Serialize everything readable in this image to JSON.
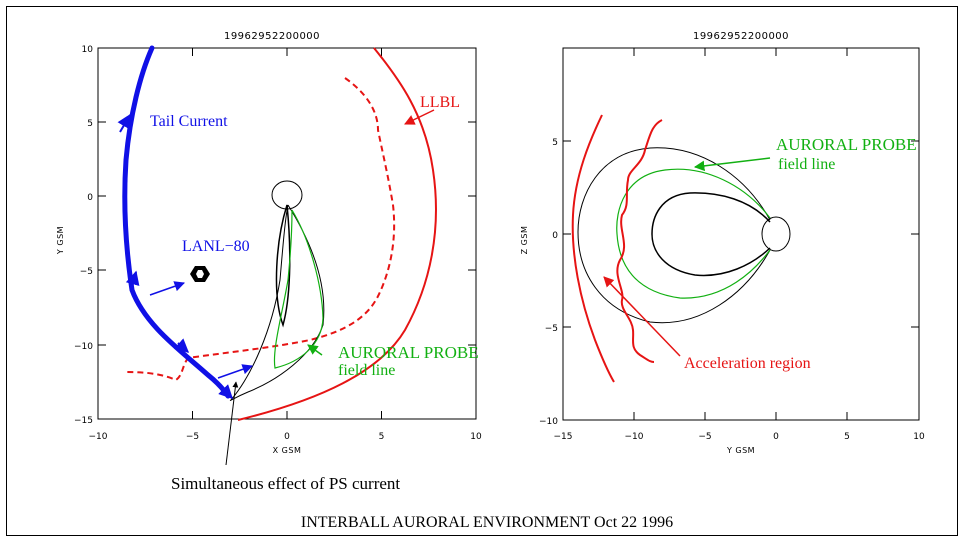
{
  "left_panel": {
    "title": "19962952200000",
    "xlabel": "X GSM",
    "ylabel": "Y GSM",
    "x_ticks": [
      "−10",
      "−5",
      "0",
      "5",
      "10"
    ],
    "y_ticks": [
      "10",
      "5",
      "0",
      "−5",
      "−10",
      "−15"
    ],
    "annotations": {
      "tail_current": "Tail Current",
      "lanl": "LANL−80",
      "llbl": "LLBL",
      "auroral_probe": "AURORAL PROBE",
      "field_line": "field line",
      "ps_current": "Simultaneous effect of PS current"
    }
  },
  "right_panel": {
    "title": "19962952200000",
    "xlabel": "Y GSM",
    "ylabel": "Z GSM",
    "x_ticks": [
      "−15",
      "−10",
      "−5",
      "0",
      "5",
      "10"
    ],
    "y_ticks": [
      "5",
      "0",
      "−5",
      "−10"
    ],
    "annotations": {
      "auroral_probe": "AURORAL PROBE",
      "field_line": "field line",
      "acceleration_region": "Acceleration region"
    }
  },
  "footer": {
    "caption": "INTERBALL AURORAL ENVIRONMENT Oct 22 1996"
  },
  "colors": {
    "blue": "#1010e6",
    "red": "#e61414",
    "green": "#12b012",
    "black": "#000000"
  }
}
